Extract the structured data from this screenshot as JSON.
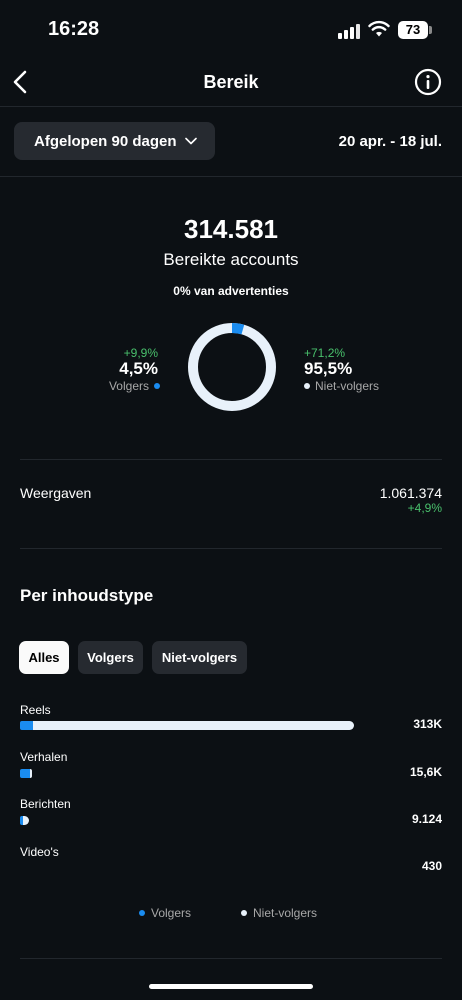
{
  "status_bar": {
    "time": "16:28",
    "battery": "73"
  },
  "header": {
    "title": "Bereik"
  },
  "range": {
    "button_label": "Afgelopen 90 dagen",
    "dates": "20 apr. - 18 jul."
  },
  "summary": {
    "accounts_reached": "314.581",
    "accounts_label": "Bereikte accounts",
    "ads_label": "0% van advertenties"
  },
  "split": {
    "followers": {
      "change": "+9,9%",
      "percent": "4,5%",
      "label": "Volgers",
      "fraction": 0.045
    },
    "non_followers": {
      "change": "+71,2%",
      "percent": "95,5%",
      "label": "Niet-volgers",
      "fraction": 0.955
    }
  },
  "views": {
    "label": "Weergaven",
    "value": "1.061.374",
    "change": "+4,9%"
  },
  "content_types": {
    "title": "Per inhoudstype",
    "filters": [
      "Alles",
      "Volgers",
      "Niet-volgers"
    ],
    "active_filter": "Alles",
    "rows": [
      {
        "label": "Reels",
        "value": "313K",
        "total": 313000,
        "followers_fraction": 0.04
      },
      {
        "label": "Verhalen",
        "value": "15,6K",
        "total": 15600,
        "followers_fraction": 0.8
      },
      {
        "label": "Berichten",
        "value": "9.124",
        "total": 9124,
        "followers_fraction": 0.35
      },
      {
        "label": "Video's",
        "value": "430",
        "total": 430,
        "followers_fraction": 0.5
      }
    ]
  },
  "legend": {
    "followers": "Volgers",
    "non_followers": "Niet-volgers"
  },
  "colors": {
    "followers": "#1a8cf0",
    "non_followers": "#e8f1fa",
    "positive": "#49c06c",
    "background": "#0c1014"
  }
}
